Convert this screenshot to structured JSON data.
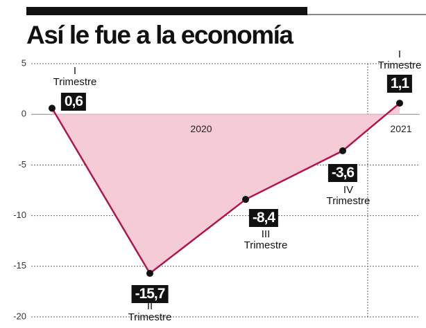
{
  "chart_data": {
    "type": "area",
    "title": "Así le fue a la economía",
    "categories": [
      "I\nTrimestre",
      "II\nTrimestre",
      "III\nTrimestre",
      "IV\nTrimestre",
      "I\nTrimestre"
    ],
    "values": [
      0.6,
      -15.7,
      -8.4,
      -3.6,
      1.1
    ],
    "value_labels": [
      "0,6",
      "-15,7",
      "-8,4",
      "-3,6",
      "1,1"
    ],
    "annotations": [
      "2020",
      "2021"
    ],
    "color": "#b3134f",
    "fill_color": "#f5ccd5",
    "ylim": [
      -20,
      5
    ],
    "yticks": [
      5,
      0,
      -5,
      -10,
      -15,
      -20
    ],
    "grid": true
  }
}
